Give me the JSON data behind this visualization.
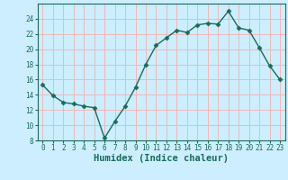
{
  "x": [
    0,
    1,
    2,
    3,
    4,
    5,
    6,
    7,
    8,
    9,
    10,
    11,
    12,
    13,
    14,
    15,
    16,
    17,
    18,
    19,
    20,
    21,
    22,
    23
  ],
  "y": [
    15.3,
    13.9,
    13.0,
    12.8,
    12.5,
    12.3,
    8.3,
    10.5,
    12.5,
    15.0,
    18.0,
    20.5,
    21.5,
    22.5,
    22.2,
    23.2,
    23.4,
    23.3,
    25.0,
    22.8,
    22.5,
    20.2,
    17.8,
    16.0
  ],
  "line_color": "#1a6b5a",
  "marker": "D",
  "marker_size": 2.5,
  "bg_color": "#cceeff",
  "grid_color": "#f0b8b8",
  "xlabel": "Humidex (Indice chaleur)",
  "ylim": [
    8,
    26
  ],
  "xlim": [
    -0.5,
    23.5
  ],
  "yticks": [
    8,
    10,
    12,
    14,
    16,
    18,
    20,
    22,
    24
  ],
  "xticks": [
    0,
    1,
    2,
    3,
    4,
    5,
    6,
    7,
    8,
    9,
    10,
    11,
    12,
    13,
    14,
    15,
    16,
    17,
    18,
    19,
    20,
    21,
    22,
    23
  ],
  "tick_label_fontsize": 5.5,
  "xlabel_fontsize": 7.5
}
